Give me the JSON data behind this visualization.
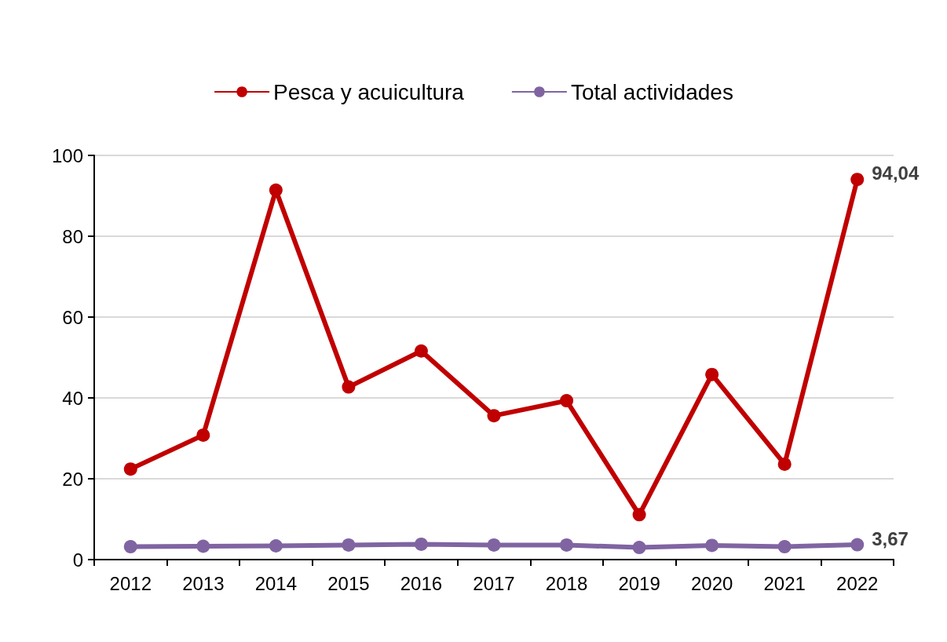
{
  "chart_data": {
    "type": "line",
    "categories": [
      "2012",
      "2013",
      "2014",
      "2015",
      "2016",
      "2017",
      "2018",
      "2019",
      "2020",
      "2021",
      "2022"
    ],
    "series": [
      {
        "name": "Pesca y acuicultura",
        "color": "#c00000",
        "values": [
          22.4,
          30.8,
          91.4,
          42.7,
          51.6,
          35.6,
          39.3,
          11.1,
          45.8,
          23.6,
          94.04
        ],
        "value_labels": [
          null,
          null,
          null,
          null,
          null,
          null,
          null,
          null,
          null,
          null,
          "94,04"
        ]
      },
      {
        "name": "Total actividades",
        "color": "#8064a2",
        "values": [
          3.2,
          3.3,
          3.4,
          3.6,
          3.8,
          3.6,
          3.6,
          3.0,
          3.5,
          3.2,
          3.67
        ],
        "value_labels": [
          null,
          null,
          null,
          null,
          null,
          null,
          null,
          null,
          null,
          null,
          "3,67"
        ]
      }
    ],
    "ylim": [
      0,
      100
    ],
    "yticks": [
      0,
      20,
      40,
      60,
      80,
      100
    ],
    "grid": "y",
    "legend": "top",
    "marker": "circle",
    "line_style": "solid"
  }
}
